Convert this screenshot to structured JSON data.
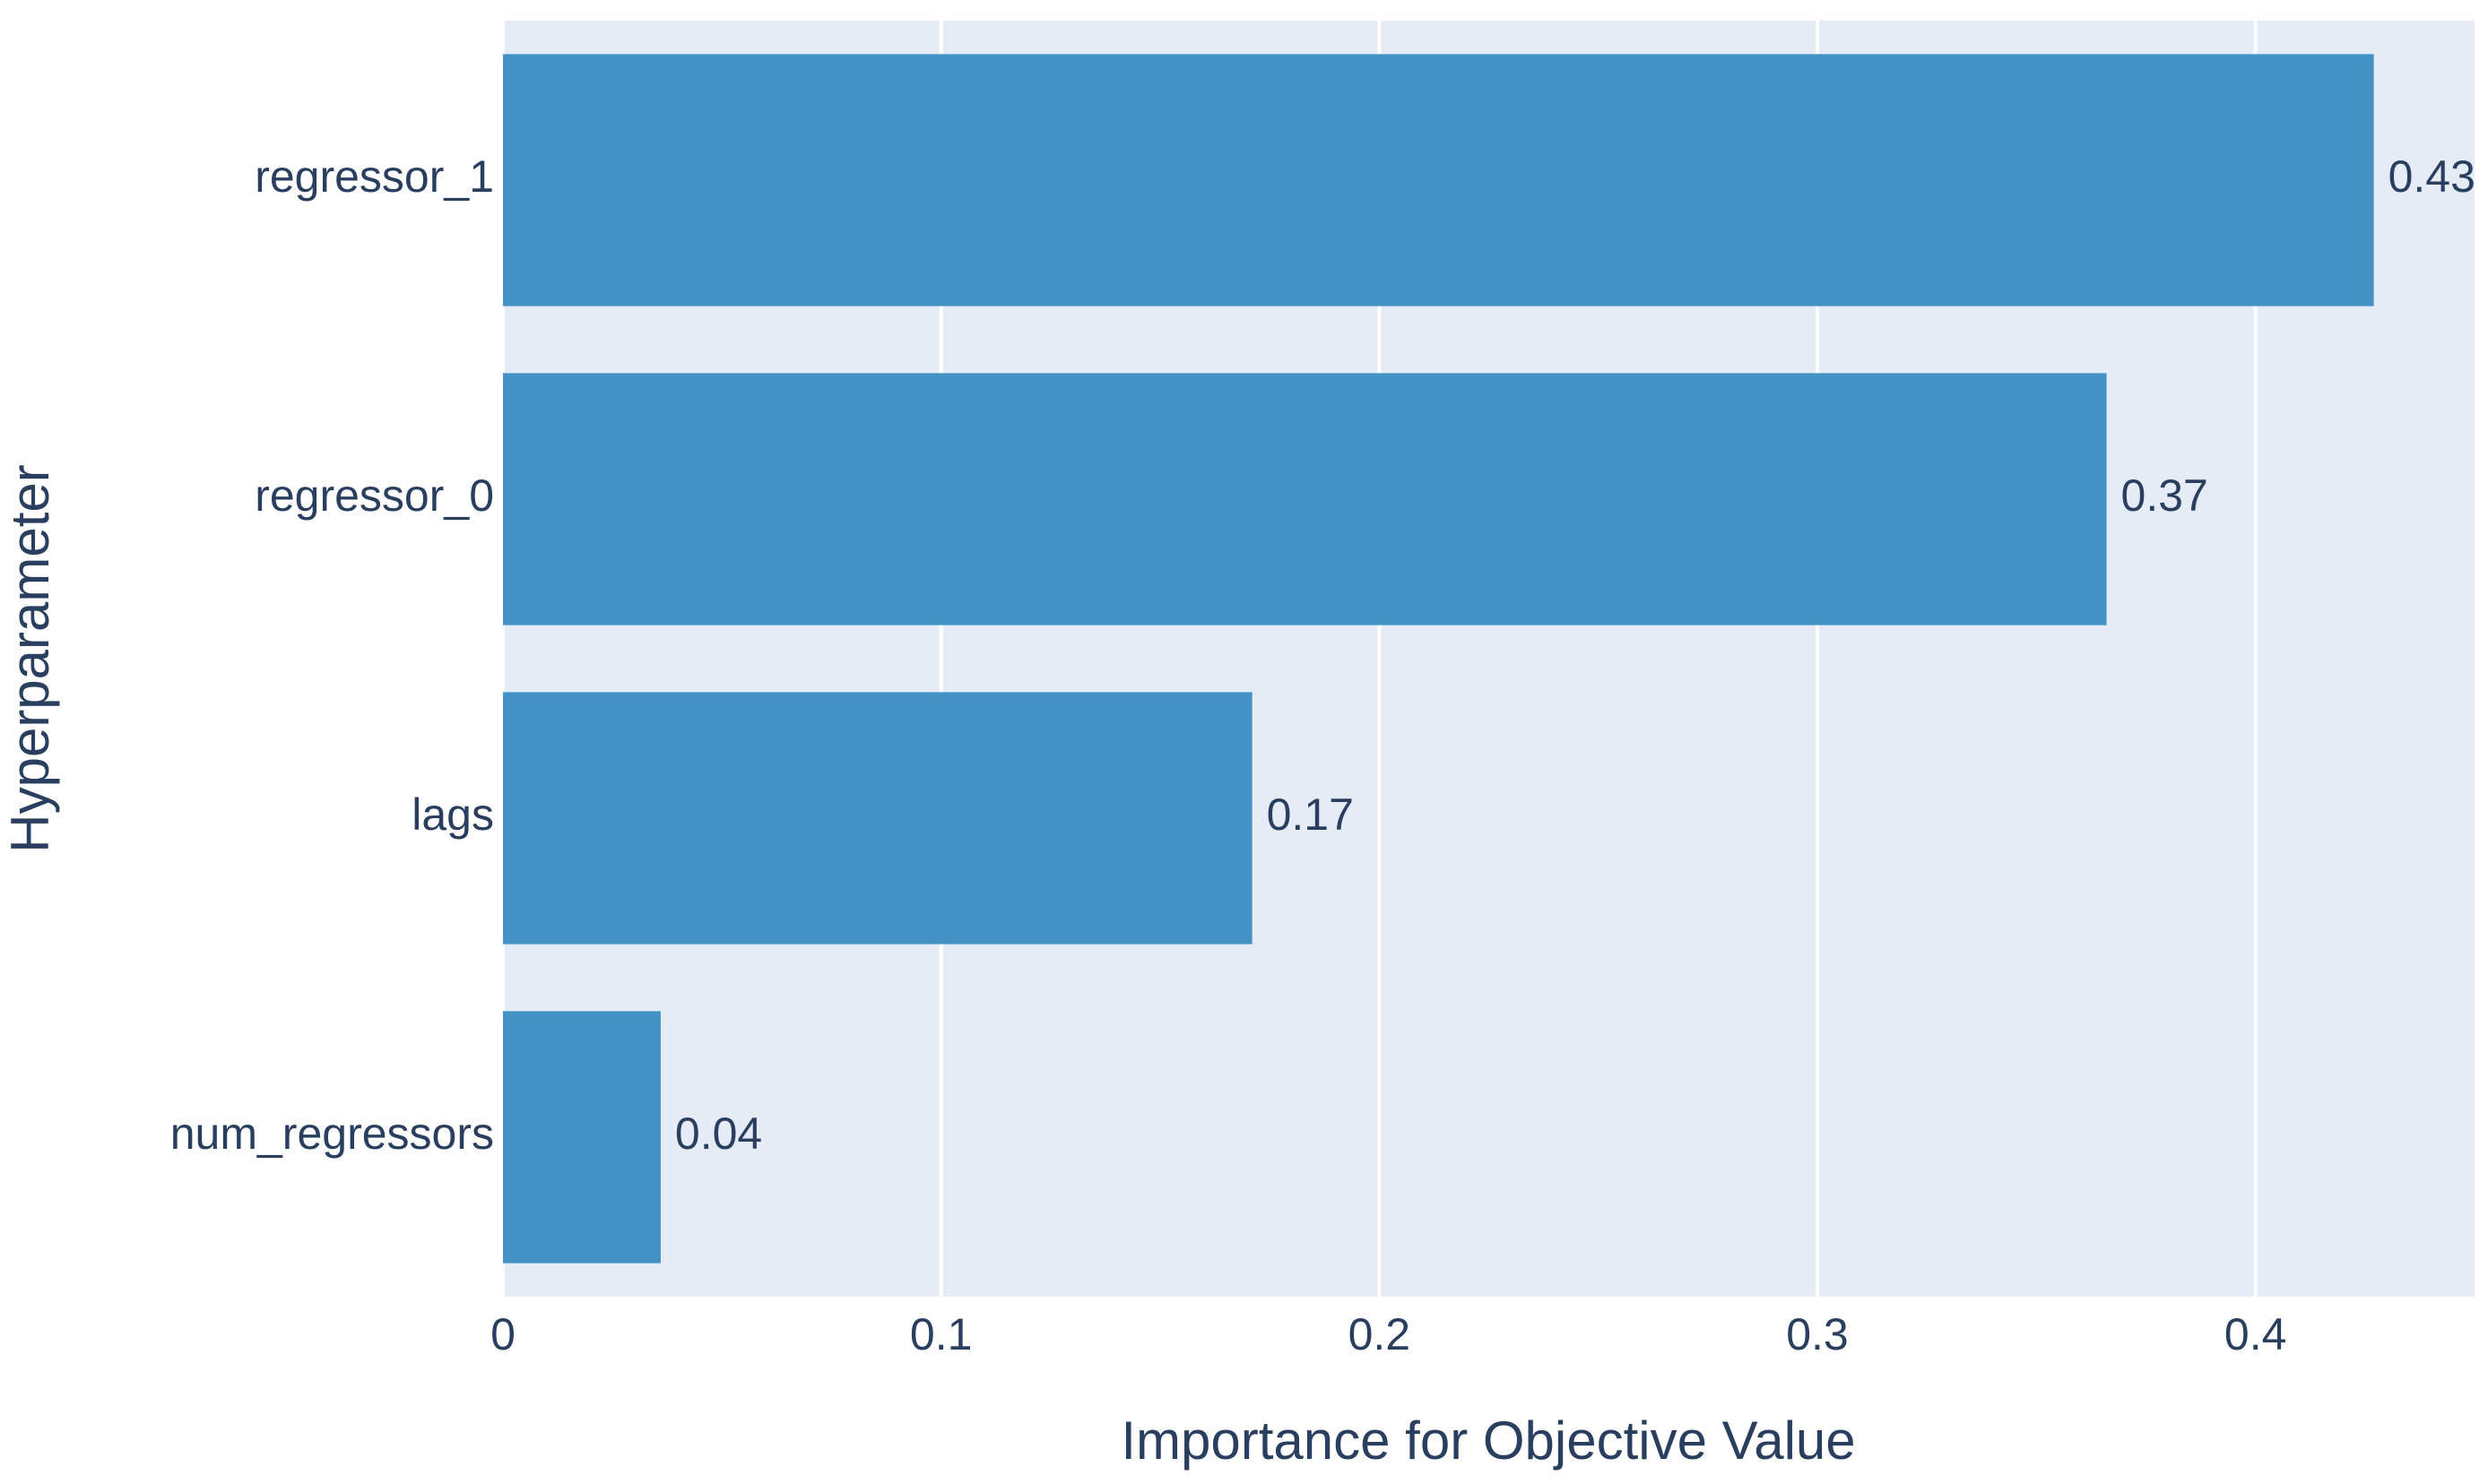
{
  "chart_data": {
    "type": "bar",
    "orientation": "horizontal",
    "x_label": "Importance for Objective Value",
    "y_label": "Hyperparameter",
    "categories": [
      "regressor_1",
      "regressor_0",
      "lags",
      "num_regressors"
    ],
    "values": [
      0.427,
      0.366,
      0.171,
      0.036
    ],
    "value_labels": [
      "0.43",
      "0.37",
      "0.17",
      "0.04"
    ],
    "color": "#4292c6",
    "xlim": [
      0,
      0.45
    ],
    "xticks": [
      0,
      0.1,
      0.2,
      0.3,
      0.4
    ],
    "grid": true
  }
}
